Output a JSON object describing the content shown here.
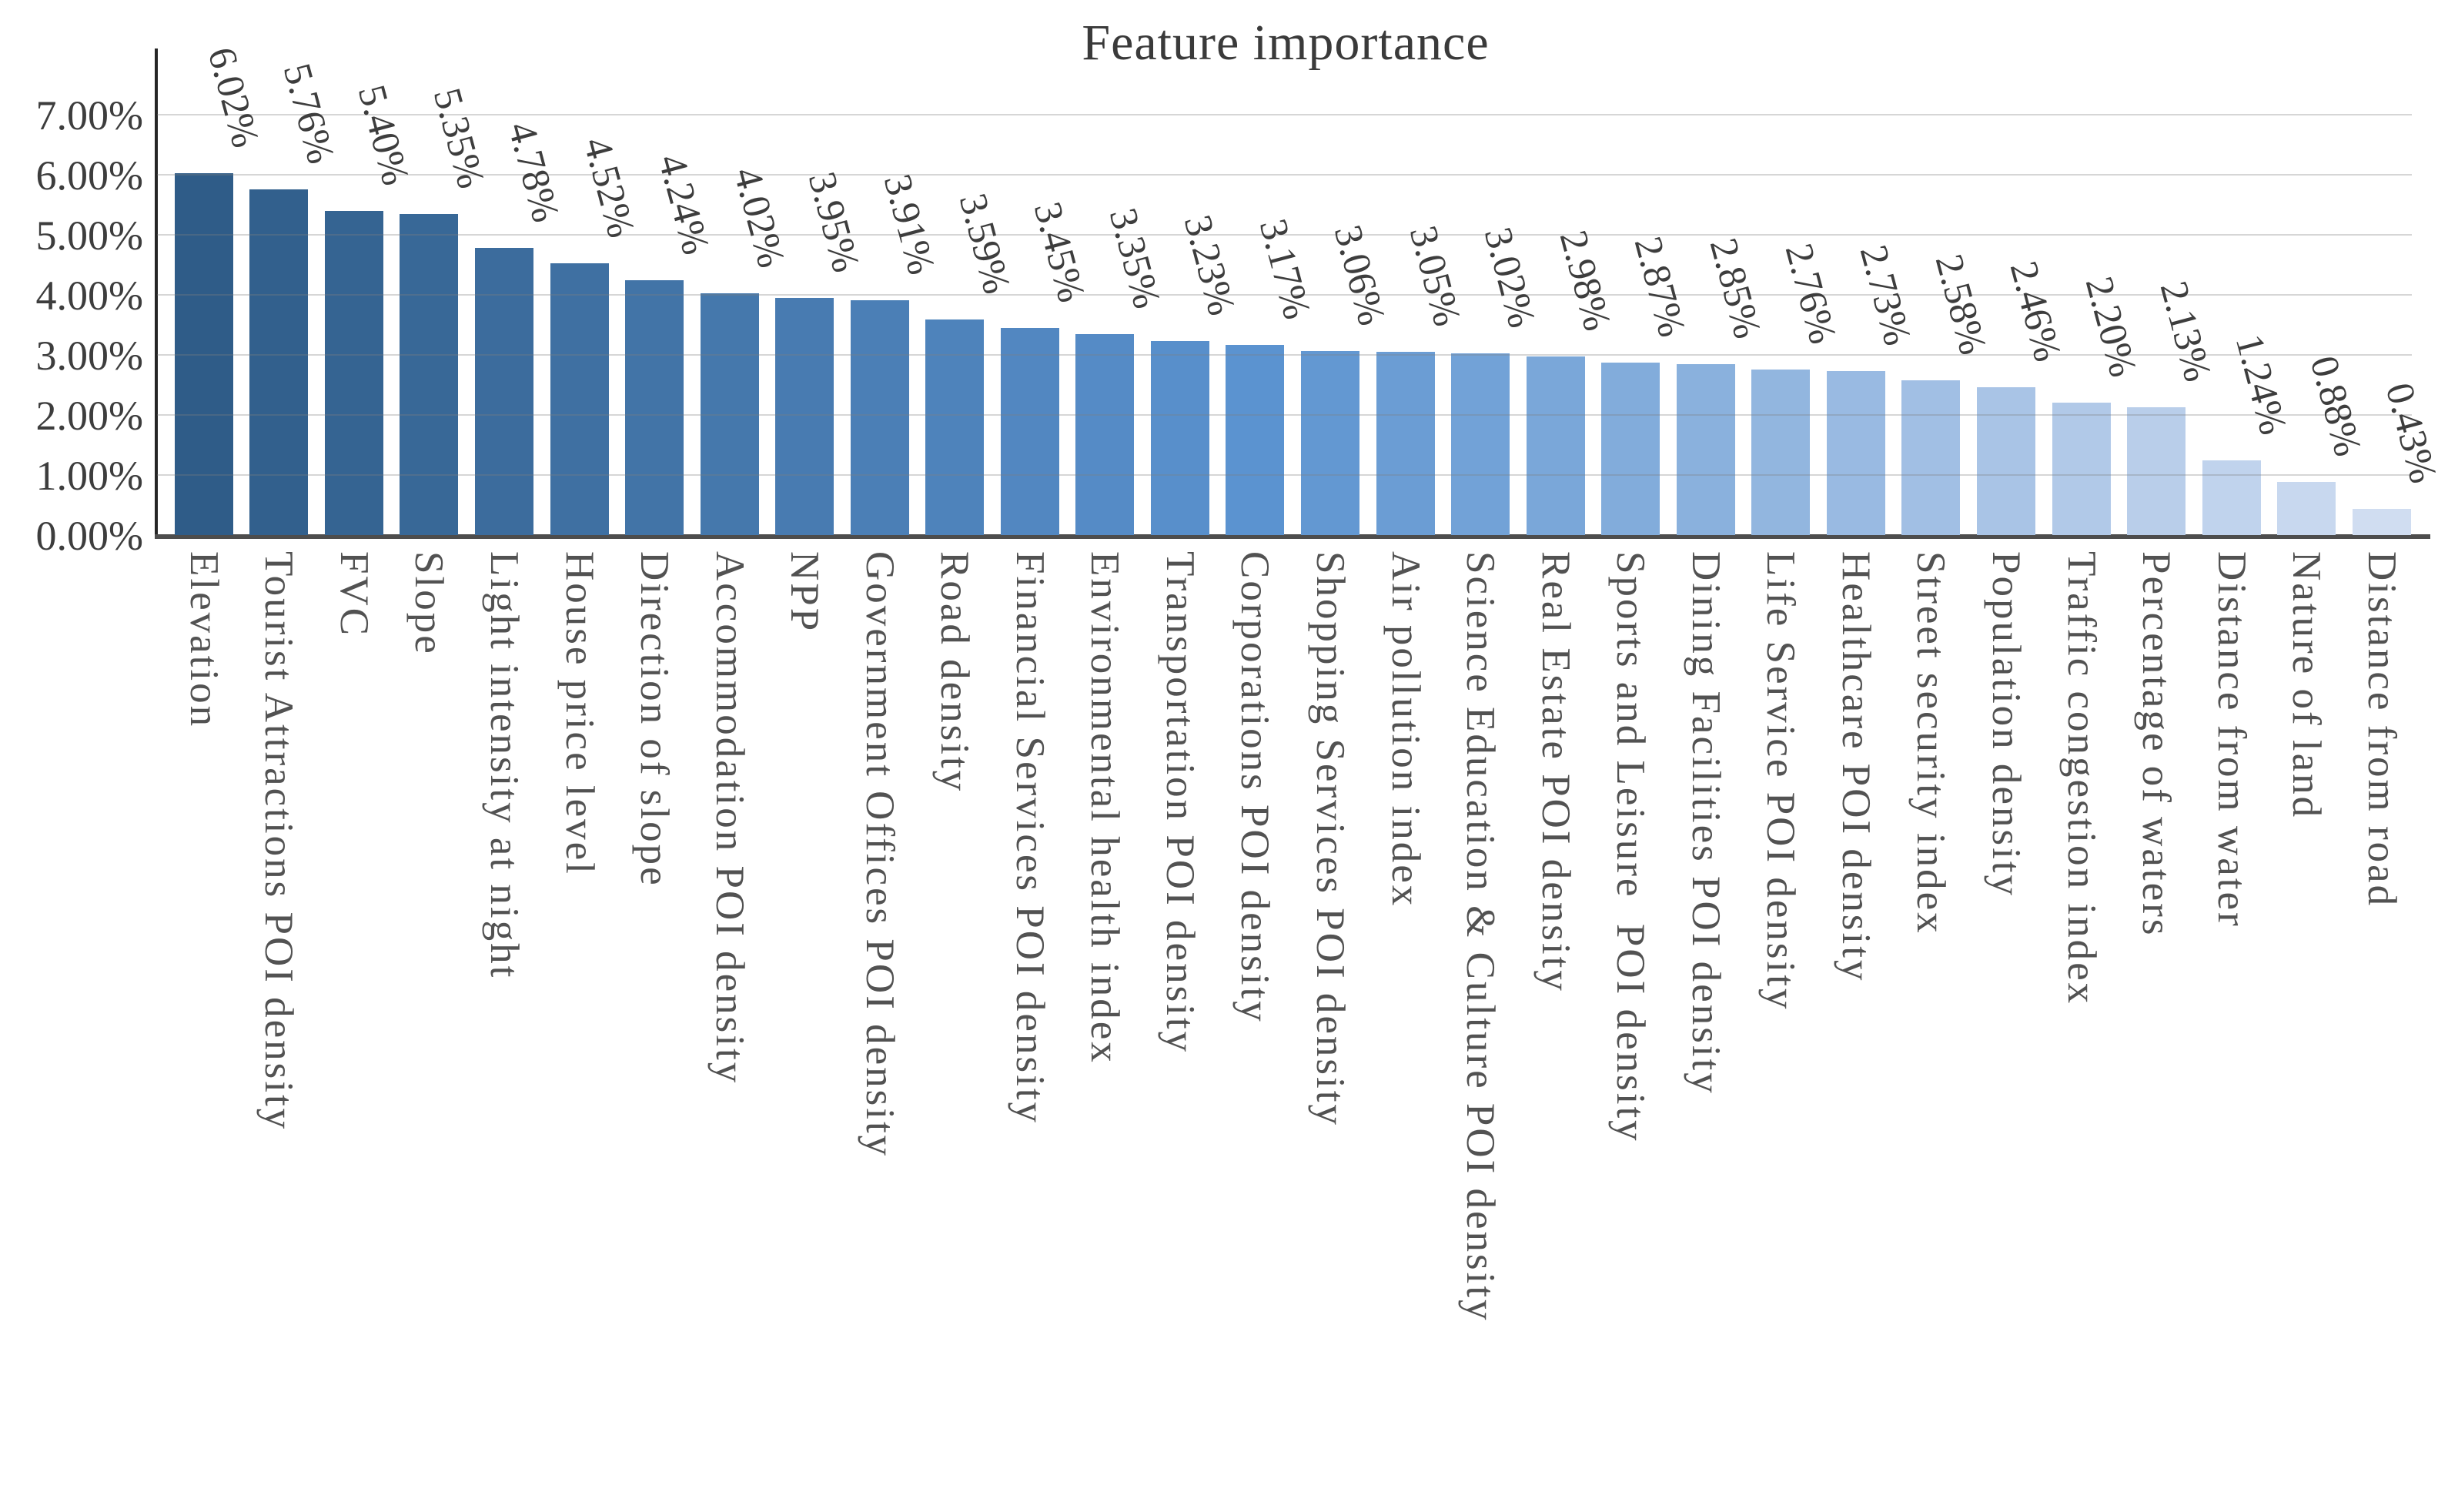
{
  "title": "Feature importance",
  "y_axis": {
    "tick_labels": [
      "7.00%",
      "6.00%",
      "5.00%",
      "4.00%",
      "3.00%",
      "2.00%",
      "1.00%",
      "0.00%"
    ],
    "min": 0,
    "max": 7,
    "step": 1
  },
  "chart_data": {
    "type": "bar",
    "title": "Feature importance",
    "categories": [
      "Elevation",
      "Tourist Attractions POI density",
      "FVC",
      "Slope",
      "Light intensity at night",
      "House price level",
      "Direction of slope",
      "Accommodation POI density",
      "NPP",
      "Government Offices POI density",
      "Road density",
      "Financial Services POI density",
      "Environmental health index",
      "Transportation POI density",
      "Corporations POI density",
      "Shopping Services POI density",
      "Air pollution index",
      "Science Education & Culture POI density",
      "Real Estate POI density",
      "Sports and Leisure  POI density",
      "Dining Facilities POI density",
      "Life Service POI density",
      "Healthcare POI density",
      "Street security index",
      "Population density",
      "Traffic congestion index",
      "Percentage of waters",
      "Distance from water",
      "Nature of land",
      "Distance from road"
    ],
    "values": [
      6.02,
      5.76,
      5.4,
      5.35,
      4.78,
      4.52,
      4.24,
      4.02,
      3.95,
      3.91,
      3.59,
      3.45,
      3.35,
      3.23,
      3.17,
      3.06,
      3.05,
      3.02,
      2.98,
      2.87,
      2.85,
      2.76,
      2.73,
      2.58,
      2.46,
      2.2,
      2.13,
      1.24,
      0.88,
      0.43
    ],
    "value_labels": [
      "6.02%",
      "5.76%",
      "5.40%",
      "5.35%",
      "4.78%",
      "4.52%",
      "4.24%",
      "4.02%",
      "3.95%",
      "3.91%",
      "3.59%",
      "3.45%",
      "3.35%",
      "3.23%",
      "3.17%",
      "3.06%",
      "3.05%",
      "3.02%",
      "2.98%",
      "2.87%",
      "2.85%",
      "2.76%",
      "2.73%",
      "2.58%",
      "2.46%",
      "2.20%",
      "2.13%",
      "1.24%",
      "0.88%",
      "0.43%"
    ],
    "xlabel": "",
    "ylabel": "",
    "ylim": [
      0,
      7
    ],
    "grid": true,
    "legend": false,
    "bar_color_stops": [
      "#2F5C88",
      "#5B93D0",
      "#D0DDF1"
    ],
    "grid_color": "#D9D9D9",
    "axis_color": "#262626",
    "baseline_color": "#4D4D4D",
    "text_color": "#3D3D3D"
  }
}
